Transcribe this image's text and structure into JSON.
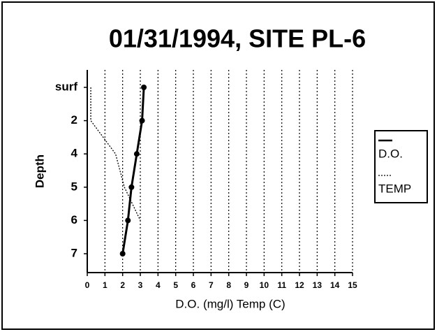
{
  "chart_data": {
    "type": "line",
    "title": "01/31/1994, SITE PL-6",
    "xlabel": "D.O. (mg/l)   Temp (C)",
    "ylabel": "Depth",
    "categories": [
      "surf",
      "2",
      "4",
      "5",
      "6",
      "7"
    ],
    "series": [
      {
        "name": "D.O.",
        "color": "#000000",
        "style": "solid",
        "values": [
          3.2,
          3.1,
          2.8,
          2.5,
          2.3,
          2.0
        ]
      },
      {
        "name": "TEMP",
        "color": "#000000",
        "style": "dotted",
        "values": [
          0.2,
          0.2,
          1.6,
          2.1,
          3.0,
          null
        ]
      }
    ],
    "xlim": [
      0,
      15
    ],
    "xticks": [
      0,
      1,
      2,
      3,
      4,
      5,
      6,
      7,
      8,
      9,
      10,
      11,
      12,
      13,
      14,
      15
    ],
    "grid": true,
    "legend": "right"
  }
}
